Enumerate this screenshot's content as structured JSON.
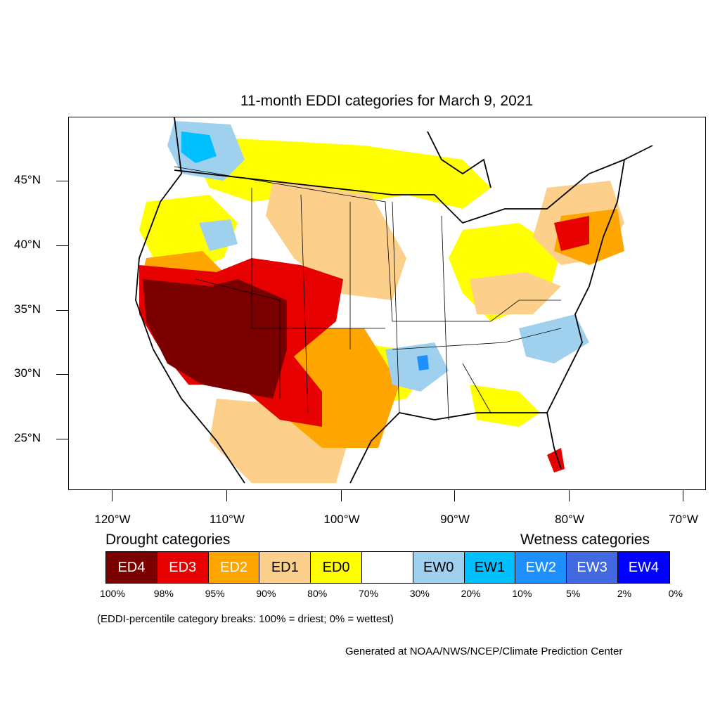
{
  "title": "11-month EDDI categories for March 9, 2021",
  "lat_labels": [
    "45°N",
    "40°N",
    "35°N",
    "30°N",
    "25°N"
  ],
  "lon_labels": [
    "120°W",
    "110°W",
    "100°W",
    "90°W",
    "80°W",
    "70°W"
  ],
  "drought_heading": "Drought categories",
  "wetness_heading": "Wetness categories",
  "legend": [
    {
      "label": "ED4",
      "color": "#7a0000",
      "text_color": "#ffffff"
    },
    {
      "label": "ED3",
      "color": "#e60000",
      "text_color": "#ffffff"
    },
    {
      "label": "ED2",
      "color": "#ffa500",
      "text_color": "#ffffff"
    },
    {
      "label": "ED1",
      "color": "#fcd08a",
      "text_color": "#000000"
    },
    {
      "label": "ED0",
      "color": "#ffff00",
      "text_color": "#000000"
    },
    {
      "label": "",
      "color": "#ffffff",
      "text_color": "#000000"
    },
    {
      "label": "EW0",
      "color": "#9fd1ef",
      "text_color": "#000000"
    },
    {
      "label": "EW1",
      "color": "#00bfff",
      "text_color": "#000000"
    },
    {
      "label": "EW2",
      "color": "#1e8fff",
      "text_color": "#ffffff"
    },
    {
      "label": "EW3",
      "color": "#4169e1",
      "text_color": "#ffffff"
    },
    {
      "label": "EW4",
      "color": "#0000ff",
      "text_color": "#ffffff"
    }
  ],
  "percent_breaks": [
    "100%",
    "98%",
    "95%",
    "90%",
    "80%",
    "70%",
    "30%",
    "20%",
    "10%",
    "5%",
    "2%",
    "0%"
  ],
  "note": "(EDDI-percentile category breaks: 100% = driest; 0% = wettest)",
  "credit": "Generated at NOAA/NWS/NCEP/Climate Prediction Center"
}
